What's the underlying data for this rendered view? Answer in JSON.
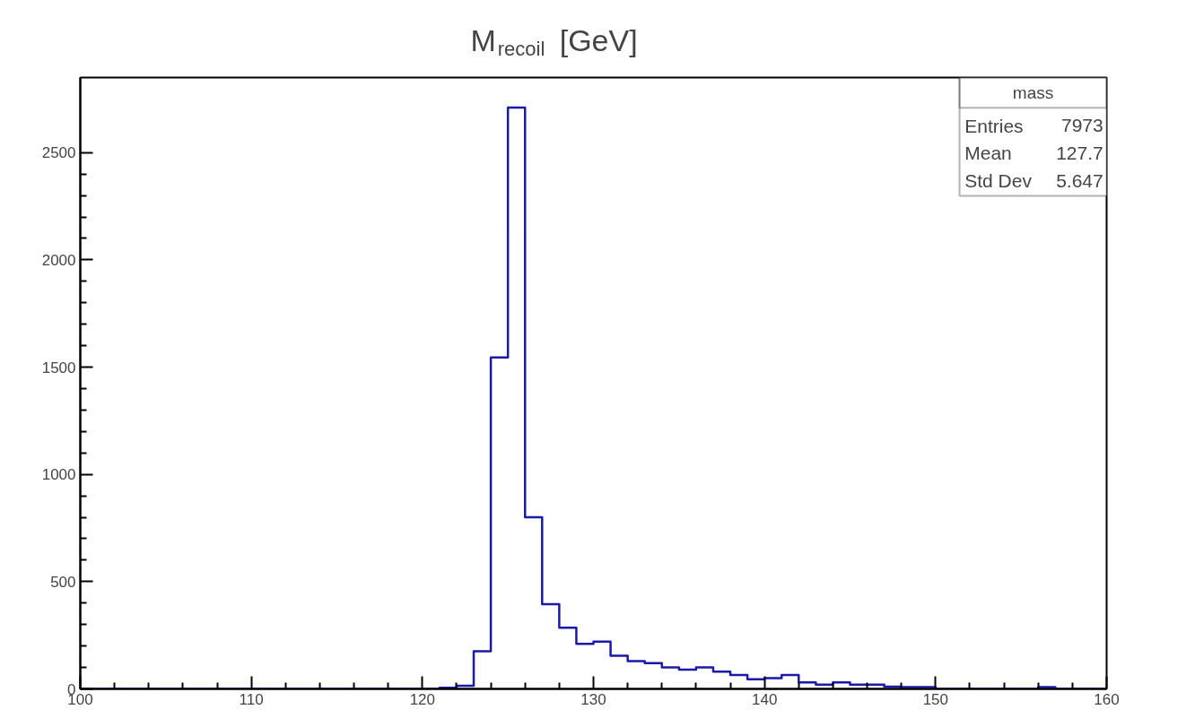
{
  "chart_data": {
    "type": "histogram",
    "title": "M$_{recoil}$ [GeV]",
    "bins": [
      100,
      101,
      102,
      103,
      104,
      105,
      106,
      107,
      108,
      109,
      110,
      111,
      112,
      113,
      114,
      115,
      116,
      117,
      118,
      119,
      120,
      121,
      122,
      123,
      124,
      125,
      126,
      127,
      128,
      129,
      130,
      131,
      132,
      133,
      134,
      135,
      136,
      137,
      138,
      139,
      140,
      141,
      142,
      143,
      144,
      145,
      146,
      147,
      148,
      149,
      150,
      151,
      152,
      153,
      154,
      155,
      156,
      157,
      158,
      159,
      160
    ],
    "values": [
      0,
      0,
      0,
      0,
      0,
      0,
      0,
      0,
      0,
      0,
      0,
      0,
      0,
      0,
      0,
      0,
      0,
      0,
      0,
      0,
      0,
      5,
      15,
      175,
      1545,
      2710,
      800,
      395,
      285,
      210,
      220,
      155,
      130,
      120,
      100,
      90,
      100,
      80,
      65,
      45,
      50,
      65,
      30,
      20,
      30,
      20,
      20,
      10,
      8,
      8,
      0,
      0,
      0,
      0,
      0,
      0,
      8,
      0,
      0,
      0
    ],
    "color": "#1a1aa6",
    "xlim": [
      100,
      160
    ],
    "ylim": [
      0,
      2850
    ],
    "xticks": [
      100,
      110,
      120,
      130,
      140,
      150,
      160
    ],
    "yticks": [
      0,
      500,
      1000,
      1500,
      2000,
      2500
    ],
    "grid": false,
    "annotations": [
      "mass",
      "Entries",
      "7973",
      "Mean",
      "127.7",
      "Std Dev",
      "5.647"
    ]
  }
}
